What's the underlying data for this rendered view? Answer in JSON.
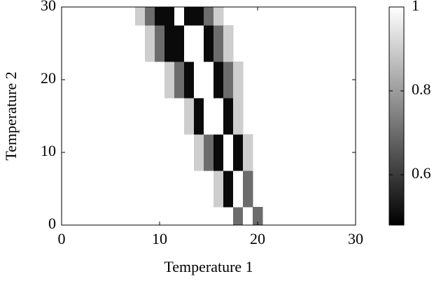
{
  "chart_data": {
    "type": "heatmap",
    "xlabel": "Temperature 1",
    "ylabel": "Temperature 2",
    "x": [
      7,
      8,
      9,
      10,
      11,
      12,
      13,
      14,
      15,
      16,
      17,
      18,
      19,
      20,
      21,
      22
    ],
    "y": [
      0,
      5,
      10,
      15,
      20,
      25,
      30
    ],
    "z": [
      [
        null,
        null,
        null,
        null,
        null,
        null,
        null,
        null,
        null,
        null,
        null,
        0.7,
        1,
        0.7,
        null,
        null
      ],
      [
        null,
        null,
        null,
        null,
        null,
        null,
        null,
        null,
        null,
        0.9,
        0.5,
        1,
        0.7,
        null,
        null,
        null
      ],
      [
        null,
        null,
        null,
        null,
        null,
        null,
        null,
        0.9,
        0.7,
        0.5,
        1,
        0.5,
        0.9,
        null,
        null,
        null
      ],
      [
        null,
        null,
        null,
        null,
        null,
        null,
        0.9,
        0.5,
        1,
        1,
        0.5,
        0.9,
        null,
        null,
        null,
        null
      ],
      [
        null,
        null,
        null,
        null,
        0.9,
        0.7,
        0.5,
        1,
        1,
        0.5,
        0.7,
        0.9,
        null,
        null,
        null,
        null
      ],
      [
        null,
        null,
        0.9,
        0.7,
        0.5,
        0.5,
        1,
        1,
        0.5,
        0.7,
        0.9,
        null,
        null,
        null,
        null,
        null
      ],
      [
        null,
        0.9,
        0.7,
        0.5,
        0.5,
        1,
        0.5,
        0.5,
        0.7,
        0.9,
        null,
        null,
        null,
        null,
        null,
        null
      ]
    ],
    "xlim": [
      0,
      30
    ],
    "ylim": [
      0,
      30
    ],
    "xticks": [
      0,
      10,
      20,
      30
    ],
    "yticks": [
      0,
      10,
      20,
      30
    ],
    "zlim": [
      0.48,
      1
    ],
    "zticks": [
      0.6,
      0.8,
      1
    ]
  }
}
